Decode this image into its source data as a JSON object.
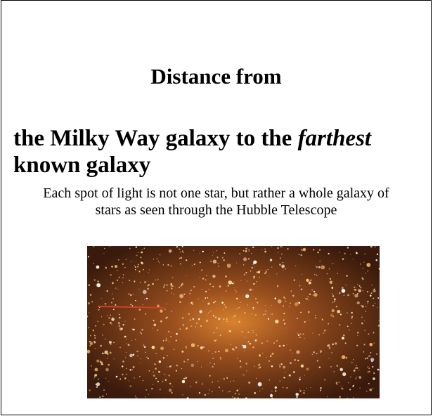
{
  "heading": {
    "line1": "Distance from",
    "line2": "the Milky Way galaxy to the",
    "emphasis": "farthest",
    "line3": "known galaxy"
  },
  "caption": "Each spot of light is not one star, but rather a whole galaxy of stars as seen through the Hubble Telescope"
}
